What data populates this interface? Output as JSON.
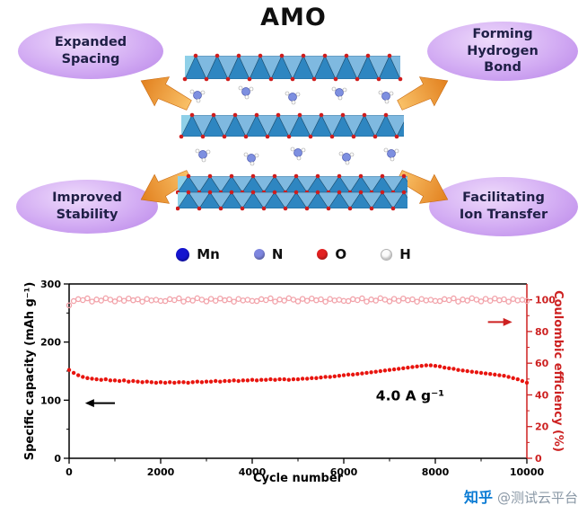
{
  "figure": {
    "title": "AMO",
    "bubbles": [
      {
        "label": "Expanded Spacing"
      },
      {
        "label": "Forming Hydrogen Bond"
      },
      {
        "label": "Improved Stability"
      },
      {
        "label": "Facilitating Ion Transfer"
      }
    ]
  },
  "legend": {
    "items": [
      {
        "label": "Mn",
        "color": "#1414cf",
        "size": 15
      },
      {
        "label": "N",
        "color": "#7e86df",
        "size": 12
      },
      {
        "label": "O",
        "color": "#e32020",
        "size": 12
      },
      {
        "label": "H",
        "color": "#fbfbfb",
        "size": 11,
        "border": "#b0b0b0"
      }
    ]
  },
  "chart_data": {
    "type": "scatter",
    "title": "",
    "xlabel": "Cycle number",
    "ylabel_left": "Specific capacity (mAh g⁻¹)",
    "ylabel_right": "Coulombic efficiency (%)",
    "annotation": "4.0 A g⁻¹",
    "xlim": [
      0,
      10000
    ],
    "ylim_left": [
      0,
      300
    ],
    "ylim_right": [
      0,
      110
    ],
    "xticks": [
      0,
      2000,
      4000,
      6000,
      8000,
      10000
    ],
    "xticks_minor": [
      1000,
      3000,
      5000,
      7000,
      9000
    ],
    "yticks_left": [
      0,
      100,
      200,
      300
    ],
    "yticks_left_minor": [
      50,
      150,
      250
    ],
    "yticks_right": [
      0,
      20,
      40,
      60,
      80,
      100
    ],
    "yticks_right_minor": [
      10,
      30,
      50,
      70,
      90
    ],
    "axis_left_color": "#000000",
    "axis_right_color": "#cd2121",
    "grid": false,
    "x": [
      0,
      100,
      200,
      300,
      400,
      500,
      600,
      700,
      800,
      900,
      1000,
      1100,
      1200,
      1300,
      1400,
      1500,
      1600,
      1700,
      1800,
      1900,
      2000,
      2100,
      2200,
      2300,
      2400,
      2500,
      2600,
      2700,
      2800,
      2900,
      3000,
      3100,
      3200,
      3300,
      3400,
      3500,
      3600,
      3700,
      3800,
      3900,
      4000,
      4100,
      4200,
      4300,
      4400,
      4500,
      4600,
      4700,
      4800,
      4900,
      5000,
      5100,
      5200,
      5300,
      5400,
      5500,
      5600,
      5700,
      5800,
      5900,
      6000,
      6100,
      6200,
      6300,
      6400,
      6500,
      6600,
      6700,
      6800,
      6900,
      7000,
      7100,
      7200,
      7300,
      7400,
      7500,
      7600,
      7700,
      7800,
      7900,
      8000,
      8100,
      8200,
      8300,
      8400,
      8500,
      8600,
      8700,
      8800,
      8900,
      9000,
      9100,
      9200,
      9300,
      9400,
      9500,
      9600,
      9700,
      9800,
      9900,
      10000
    ],
    "series": [
      {
        "name": "Specific capacity",
        "axis": "left",
        "marker": "filled",
        "color": "#e8150f",
        "y": [
          152,
          147,
          143,
          140,
          138,
          137,
          136,
          135,
          136,
          134,
          134,
          133,
          134,
          132,
          133,
          132,
          131,
          132,
          131,
          130,
          131,
          130,
          131,
          130,
          131,
          131,
          130,
          131,
          132,
          131,
          132,
          132,
          133,
          132,
          133,
          133,
          134,
          133,
          134,
          134,
          135,
          134,
          135,
          135,
          136,
          135,
          136,
          136,
          135,
          136,
          136,
          137,
          137,
          138,
          138,
          139,
          140,
          140,
          141,
          142,
          143,
          144,
          144,
          145,
          146,
          147,
          148,
          149,
          150,
          151,
          152,
          153,
          154,
          155,
          156,
          157,
          158,
          159,
          160,
          160,
          159,
          158,
          156,
          155,
          154,
          152,
          151,
          150,
          149,
          148,
          147,
          146,
          145,
          144,
          143,
          142,
          140,
          138,
          136,
          133,
          130
        ]
      },
      {
        "name": "Coulombic efficiency",
        "axis": "right",
        "marker": "open",
        "color": "#f2a3aa",
        "y": [
          96.5,
          99.2,
          100.4,
          99.8,
          100.9,
          98.9,
          100.2,
          99.5,
          101,
          100.1,
          99,
          100.6,
          99.4,
          100.8,
          99.7,
          100.3,
          98.8,
          100.5,
          99.6,
          100,
          99.3,
          99.2,
          100.4,
          99.8,
          100.9,
          98.9,
          100.2,
          99.5,
          101,
          100.1,
          99,
          100.6,
          99.4,
          100.8,
          99.7,
          100.3,
          98.8,
          100.5,
          99.6,
          100,
          99.3,
          99.2,
          100.4,
          99.8,
          100.9,
          98.9,
          100.2,
          99.5,
          101,
          100.1,
          99,
          100.6,
          99.4,
          100.8,
          99.7,
          100.3,
          98.8,
          100.5,
          99.6,
          100,
          99.3,
          99.2,
          100.4,
          99.8,
          100.9,
          98.9,
          100.2,
          99.5,
          101,
          100.1,
          99,
          100.6,
          99.4,
          100.8,
          99.7,
          100.3,
          98.8,
          100.5,
          99.6,
          100,
          99.3,
          99.2,
          100.4,
          99.8,
          100.9,
          98.9,
          100.2,
          99.5,
          101,
          100.1,
          99,
          100.6,
          99.4,
          100.8,
          99.7,
          100.3,
          98.8,
          100.5,
          99.6,
          100,
          99.3
        ]
      }
    ]
  },
  "watermark": {
    "brand": "知乎",
    "user": "@测试云平台"
  }
}
